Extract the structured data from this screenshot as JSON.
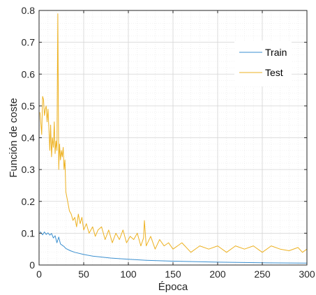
{
  "chart_data": {
    "type": "line",
    "title": "",
    "xlabel": "Época",
    "ylabel": "Función de coste",
    "xlim": [
      0,
      300
    ],
    "ylim": [
      0,
      0.8
    ],
    "xticks": [
      "0",
      "50",
      "100",
      "150",
      "200",
      "250",
      "300"
    ],
    "yticks": [
      "0",
      "0.1",
      "0.2",
      "0.3",
      "0.4",
      "0.5",
      "0.6",
      "0.7",
      "0.8"
    ],
    "grid": true,
    "legend_position": "top-right",
    "series": [
      {
        "name": "Train",
        "color": "#3a8fd0",
        "x": [
          1,
          4,
          6,
          8,
          10,
          12,
          14,
          16,
          18,
          20,
          22,
          24,
          26,
          28,
          30,
          35,
          40,
          50,
          60,
          80,
          100,
          120,
          150,
          200,
          250,
          300
        ],
        "y": [
          0.105,
          0.095,
          0.104,
          0.096,
          0.101,
          0.094,
          0.099,
          0.085,
          0.092,
          0.07,
          0.088,
          0.066,
          0.062,
          0.058,
          0.052,
          0.045,
          0.04,
          0.033,
          0.028,
          0.022,
          0.018,
          0.015,
          0.012,
          0.009,
          0.007,
          0.006
        ]
      },
      {
        "name": "Test",
        "color": "#edb120",
        "x": [
          1,
          3,
          4,
          5,
          6,
          7,
          8,
          9,
          10,
          11,
          12,
          13,
          14,
          15,
          16,
          17,
          18,
          19,
          20,
          21,
          22,
          23,
          24,
          25,
          26,
          27,
          28,
          29,
          30,
          32,
          34,
          36,
          38,
          40,
          42,
          44,
          46,
          48,
          50,
          53,
          56,
          60,
          63,
          66,
          70,
          74,
          78,
          82,
          86,
          90,
          94,
          98,
          102,
          106,
          110,
          114,
          117,
          118,
          120,
          125,
          130,
          135,
          140,
          145,
          150,
          160,
          170,
          180,
          190,
          200,
          210,
          220,
          230,
          240,
          250,
          260,
          270,
          280,
          290,
          295,
          300
        ],
        "y": [
          0.48,
          0.41,
          0.53,
          0.52,
          0.47,
          0.49,
          0.5,
          0.45,
          0.49,
          0.43,
          0.36,
          0.44,
          0.34,
          0.4,
          0.37,
          0.45,
          0.35,
          0.39,
          0.36,
          0.79,
          0.3,
          0.38,
          0.33,
          0.36,
          0.34,
          0.37,
          0.3,
          0.33,
          0.23,
          0.2,
          0.17,
          0.16,
          0.14,
          0.15,
          0.12,
          0.16,
          0.13,
          0.15,
          0.11,
          0.13,
          0.1,
          0.12,
          0.09,
          0.11,
          0.12,
          0.08,
          0.11,
          0.07,
          0.1,
          0.08,
          0.11,
          0.07,
          0.09,
          0.08,
          0.1,
          0.06,
          0.085,
          0.14,
          0.06,
          0.09,
          0.05,
          0.08,
          0.06,
          0.07,
          0.05,
          0.07,
          0.04,
          0.06,
          0.05,
          0.06,
          0.04,
          0.06,
          0.05,
          0.06,
          0.04,
          0.06,
          0.05,
          0.045,
          0.055,
          0.04,
          0.05
        ]
      }
    ]
  }
}
